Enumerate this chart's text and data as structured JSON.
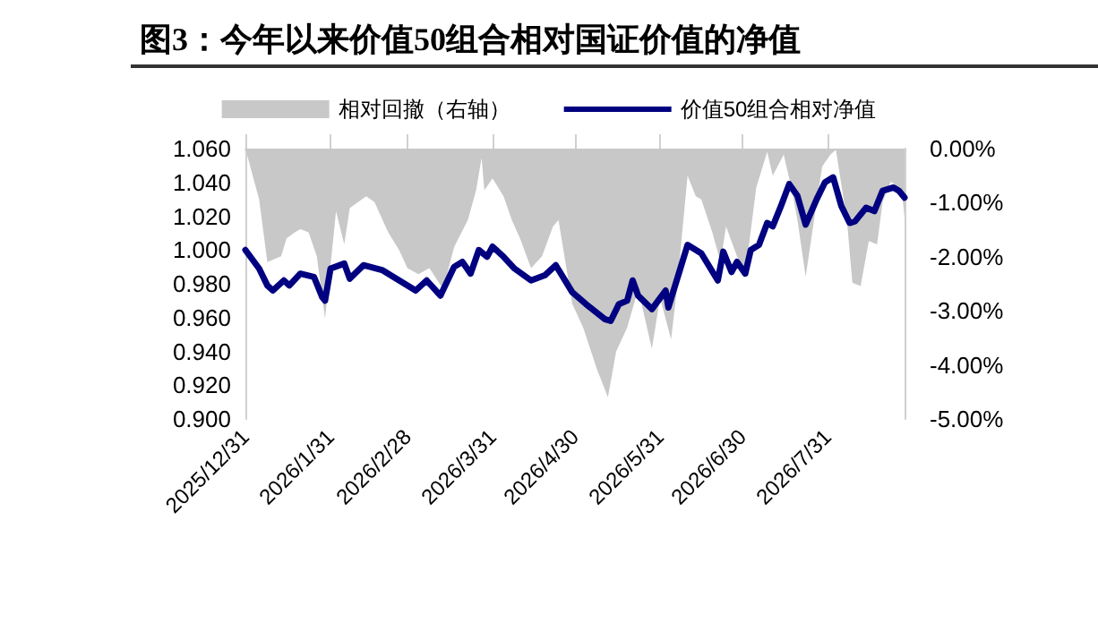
{
  "chart_data": {
    "type": "line",
    "title": "图3：今年以来价值50组合相对国证价值的净值",
    "legend": "top",
    "grid": false,
    "xlim": [
      "2025-12-31",
      "2026-08-28"
    ],
    "xticks": [
      {
        "value": "2025-12-31",
        "label": "2025/12/31"
      },
      {
        "value": "2026-01-31",
        "label": "2026/1/31"
      },
      {
        "value": "2026-02-28",
        "label": "2026/2/28"
      },
      {
        "value": "2026-03-31",
        "label": "2026/3/31"
      },
      {
        "value": "2026-04-30",
        "label": "2026/4/30"
      },
      {
        "value": "2026-05-31",
        "label": "2026/5/31"
      },
      {
        "value": "2026-06-30",
        "label": "2026/6/30"
      },
      {
        "value": "2026-07-31",
        "label": "2026/7/31"
      }
    ],
    "ylim": [
      0.9,
      1.06
    ],
    "yticks": [
      {
        "value": 0.9,
        "label": "0.900"
      },
      {
        "value": 0.92,
        "label": "0.920"
      },
      {
        "value": 0.94,
        "label": "0.940"
      },
      {
        "value": 0.96,
        "label": "0.960"
      },
      {
        "value": 0.98,
        "label": "0.980"
      },
      {
        "value": 1.0,
        "label": "1.000"
      },
      {
        "value": 1.02,
        "label": "1.020"
      },
      {
        "value": 1.04,
        "label": "1.040"
      },
      {
        "value": 1.06,
        "label": "1.060"
      }
    ],
    "y2lim": [
      -5,
      0
    ],
    "y2ticks": [
      {
        "value": -5,
        "label": "-5.00%"
      },
      {
        "value": -4,
        "label": "-4.00%"
      },
      {
        "value": -3,
        "label": "-3.00%"
      },
      {
        "value": -2,
        "label": "-2.00%"
      },
      {
        "value": -1,
        "label": "-1.00%"
      },
      {
        "value": 0,
        "label": "0.00%"
      }
    ],
    "series": [
      {
        "name": "相对回撤（右轴）",
        "type": "area",
        "axis": "y2",
        "color": "#c8c8c8",
        "x": [
          "2025-12-31",
          "2026-01-05",
          "2026-01-08",
          "2026-01-13",
          "2026-01-15",
          "2026-01-18",
          "2026-01-20",
          "2026-01-23",
          "2026-01-26",
          "2026-01-29",
          "2026-02-01",
          "2026-02-02",
          "2026-02-05",
          "2026-02-07",
          "2026-02-10",
          "2026-02-13",
          "2026-02-16",
          "2026-02-21",
          "2026-02-25",
          "2026-02-28",
          "2026-03-04",
          "2026-03-08",
          "2026-03-13",
          "2026-03-17",
          "2026-03-22",
          "2026-03-25",
          "2026-03-27",
          "2026-03-28",
          "2026-03-31",
          "2026-04-04",
          "2026-04-07",
          "2026-04-10",
          "2026-04-14",
          "2026-04-18",
          "2026-04-22",
          "2026-04-24",
          "2026-04-29",
          "2026-05-03",
          "2026-05-08",
          "2026-05-12",
          "2026-05-15",
          "2026-05-19",
          "2026-05-23",
          "2026-05-28",
          "2026-05-31",
          "2026-06-04",
          "2026-06-06",
          "2026-06-10",
          "2026-06-13",
          "2026-06-15",
          "2026-06-19",
          "2026-06-22",
          "2026-06-24",
          "2026-06-28",
          "2026-07-01",
          "2026-07-05",
          "2026-07-09",
          "2026-07-11",
          "2026-07-15",
          "2026-07-18",
          "2026-07-20",
          "2026-07-23",
          "2026-07-27",
          "2026-07-29",
          "2026-08-01",
          "2026-08-03",
          "2026-08-07",
          "2026-08-09",
          "2026-08-12",
          "2026-08-15",
          "2026-08-18",
          "2026-08-20",
          "2026-08-23",
          "2026-08-27",
          "2026-08-28"
        ],
        "values": [
          0,
          -0.94,
          -2.1,
          -1.99,
          -1.66,
          -1.55,
          -1.49,
          -1.55,
          -1.99,
          -3.14,
          -1.66,
          -1.16,
          -1.77,
          -1.1,
          -0.99,
          -0.88,
          -0.99,
          -1.55,
          -1.88,
          -2.21,
          -2.32,
          -2.21,
          -2.6,
          -1.82,
          -1.32,
          -0.77,
          -0.17,
          -0.77,
          -0.55,
          -0.88,
          -1.32,
          -1.66,
          -2.21,
          -1.99,
          -1.44,
          -1.32,
          -2.87,
          -3.31,
          -4.08,
          -4.6,
          -3.75,
          -3.31,
          -2.6,
          -3.7,
          -2.76,
          -3.53,
          -2.65,
          -0.5,
          -0.88,
          -0.94,
          -1.55,
          -2.1,
          -1.44,
          -1.99,
          -2.32,
          -0.72,
          -0.06,
          -0.5,
          -0.11,
          -0.77,
          -1.32,
          -2.37,
          -0.99,
          -0.33,
          -0.11,
          -0.02,
          -1.32,
          -2.48,
          -2.54,
          -1.71,
          -1.77,
          -0.99,
          -0.61,
          -0.77,
          -1.27
        ]
      },
      {
        "name": "价值50组合相对净值",
        "color": "#000080",
        "x": [
          "2025-12-31",
          "2026-01-05",
          "2026-01-08",
          "2026-01-10",
          "2026-01-14",
          "2026-01-16",
          "2026-01-20",
          "2026-01-25",
          "2026-01-28",
          "2026-01-29",
          "2026-01-31",
          "2026-02-05",
          "2026-02-07",
          "2026-02-12",
          "2026-02-19",
          "2026-02-25",
          "2026-03-03",
          "2026-03-07",
          "2026-03-12",
          "2026-03-17",
          "2026-03-20",
          "2026-03-23",
          "2026-03-26",
          "2026-03-29",
          "2026-03-31",
          "2026-04-04",
          "2026-04-08",
          "2026-04-14",
          "2026-04-19",
          "2026-04-23",
          "2026-04-29",
          "2026-05-04",
          "2026-05-11",
          "2026-05-13",
          "2026-05-16",
          "2026-05-19",
          "2026-05-21",
          "2026-05-23",
          "2026-05-28",
          "2026-06-02",
          "2026-06-03",
          "2026-06-10",
          "2026-06-15",
          "2026-06-21",
          "2026-06-23",
          "2026-06-26",
          "2026-06-28",
          "2026-07-01",
          "2026-07-03",
          "2026-07-06",
          "2026-07-09",
          "2026-07-11",
          "2026-07-14",
          "2026-07-17",
          "2026-07-20",
          "2026-07-23",
          "2026-07-27",
          "2026-07-30",
          "2026-08-02",
          "2026-08-05",
          "2026-08-08",
          "2026-08-10",
          "2026-08-14",
          "2026-08-17",
          "2026-08-20",
          "2026-08-24",
          "2026-08-26",
          "2026-08-28"
        ],
        "values": [
          1.0,
          0.989,
          0.979,
          0.976,
          0.982,
          0.979,
          0.986,
          0.984,
          0.972,
          0.97,
          0.989,
          0.992,
          0.983,
          0.991,
          0.988,
          0.982,
          0.976,
          0.982,
          0.973,
          0.99,
          0.993,
          0.986,
          1.0,
          0.996,
          1.002,
          0.996,
          0.989,
          0.982,
          0.985,
          0.991,
          0.975,
          0.968,
          0.959,
          0.958,
          0.968,
          0.97,
          0.982,
          0.973,
          0.965,
          0.976,
          0.966,
          1.003,
          0.998,
          0.982,
          0.999,
          0.987,
          0.993,
          0.986,
          1.0,
          1.003,
          1.016,
          1.014,
          1.026,
          1.039,
          1.032,
          1.015,
          1.03,
          1.04,
          1.043,
          1.026,
          1.016,
          1.017,
          1.025,
          1.023,
          1.035,
          1.037,
          1.035,
          1.031
        ]
      }
    ]
  }
}
